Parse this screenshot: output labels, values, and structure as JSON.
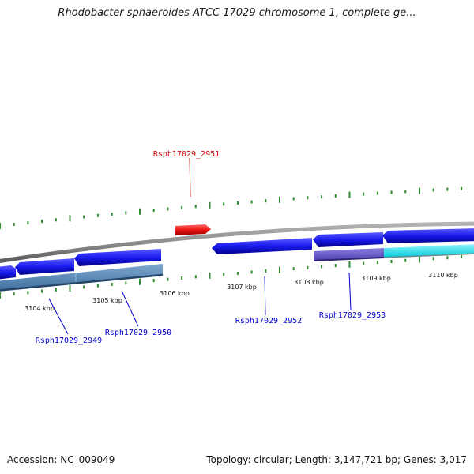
{
  "title": "Rhodobacter sphaeroides ATCC 17029 chromosome 1, complete ge...",
  "footer": {
    "accession_label": "Accession:",
    "accession": "NC_009049",
    "topology_label": "Topology:",
    "topology": "circular",
    "length_label": "Length:",
    "length": "3,147,721 bp",
    "genes_label": "Genes:",
    "genes": "3,017"
  },
  "scale": {
    "unit": "kbp",
    "ticks": [
      3104,
      3105,
      3106,
      3107,
      3108,
      3109,
      3110
    ]
  },
  "genes": [
    {
      "id": "Rsph17029_2949",
      "label": "Rsph17029_2949",
      "strand": "minus",
      "color": "#0000cc",
      "labeled": true
    },
    {
      "id": "Rsph17029_2950",
      "label": "Rsph17029_2950",
      "strand": "minus",
      "color": "#0000cc",
      "labeled": true
    },
    {
      "id": "Rsph17029_2951",
      "label": "Rsph17029_2951",
      "strand": "plus",
      "color": "#dd0000",
      "labeled": true
    },
    {
      "id": "Rsph17029_2952",
      "label": "Rsph17029_2952",
      "strand": "minus",
      "color": "#0000cc",
      "labeled": true
    },
    {
      "id": "Rsph17029_2953",
      "label": "Rsph17029_2953",
      "strand": "minus",
      "color": "#0000cc",
      "labeled": true
    }
  ],
  "colors": {
    "backbone": "#8c8c8c",
    "tick": "#2e8b2e",
    "gene_minus": "#1a1aee",
    "gene_plus": "#ee1111",
    "feature_steelblue": "#4a7fb5",
    "feature_slate": "#6a5acd",
    "feature_cyan": "#00e5ee",
    "label_blue": "#0000cc",
    "label_red": "#cc0000"
  }
}
